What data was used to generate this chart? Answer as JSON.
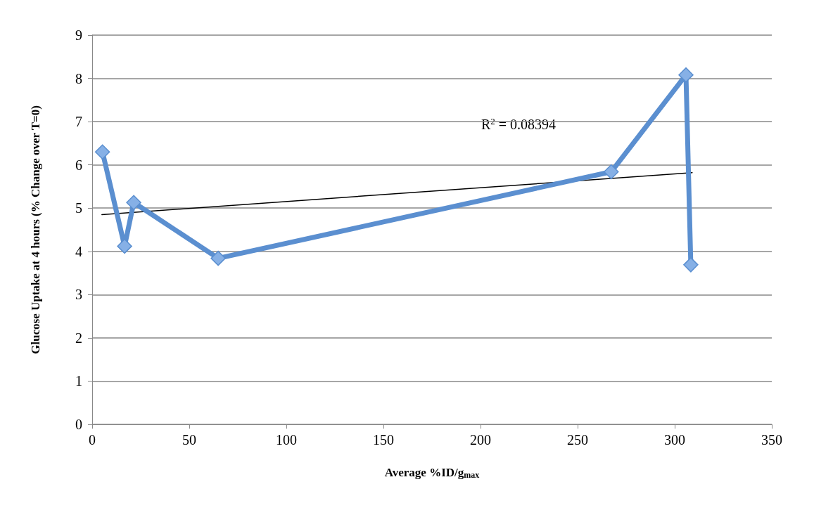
{
  "chart_data": {
    "type": "line",
    "xlabel": "Average %ID/g$_{max}$",
    "ylabel": "Glucose Uptake at 4 hours (% Change over T=0)",
    "xlim": [
      0,
      350
    ],
    "xticks": [
      0,
      50,
      100,
      150,
      200,
      250,
      300,
      350
    ],
    "ylim": [
      0,
      9
    ],
    "yticks": [
      0,
      1,
      2,
      3,
      4,
      5,
      6,
      7,
      8,
      9
    ],
    "grid": "y",
    "series": [
      {
        "color": "#5b8fd0",
        "marker": "diamond",
        "line_style": "solid",
        "x": [
          5.3,
          16.7,
          21.4,
          64.9,
          267.3,
          305.8,
          308.3
        ],
        "values": [
          6.3,
          4.12,
          5.13,
          3.84,
          5.84,
          8.08,
          3.69
        ]
      },
      {
        "color": "#000000",
        "marker": "none",
        "line_style": "solid",
        "x": [
          5,
          309
        ],
        "values": [
          4.85,
          5.82
        ]
      }
    ],
    "annotations": [
      "R$^{2}$ = 0.08394"
    ]
  }
}
